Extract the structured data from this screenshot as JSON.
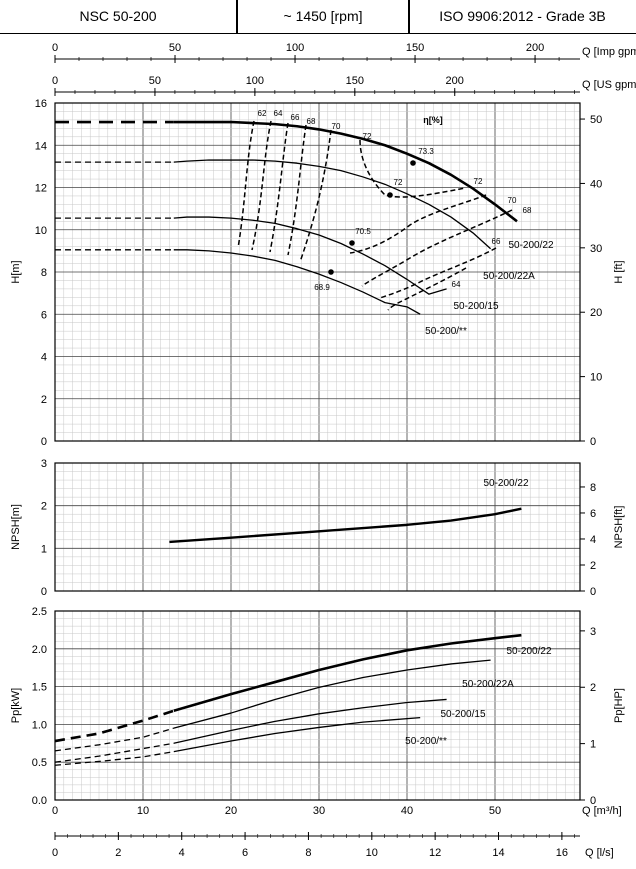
{
  "header": {
    "model": "NSC 50-200",
    "speed": "~ 1450 [rpm]",
    "standard": "ISO 9906:2012 - Grade 3B"
  },
  "chart_data": [
    {
      "type": "line",
      "id": "flow_axes",
      "axes": {
        "imp_gpm": {
          "label": "Q [Imp gpm]",
          "ticks": [
            0,
            50,
            100,
            150,
            200
          ]
        },
        "us_gpm": {
          "label": "Q [US gpm]",
          "ticks": [
            0,
            50,
            100,
            150,
            200
          ]
        },
        "m3h": {
          "label": "Q [m³/h]",
          "ticks": [
            0,
            10,
            20,
            30,
            40,
            50
          ]
        },
        "ls": {
          "label": "Q [l/s]",
          "ticks": [
            0,
            2,
            4,
            6,
            8,
            10,
            12,
            14,
            16
          ]
        }
      }
    },
    {
      "type": "line",
      "id": "head",
      "ylabel": "H[m]",
      "y2label": "H [ft]",
      "ylim": [
        0,
        16
      ],
      "yticks": [
        0,
        2,
        4,
        6,
        8,
        10,
        12,
        14,
        16
      ],
      "y2ticks": [
        0,
        10,
        20,
        30,
        40,
        50
      ],
      "eta_label": "η[%]",
      "series": [
        {
          "name": "50-200/22",
          "bold": true,
          "x": [
            13.5,
            15,
            17.5,
            20,
            22.5,
            25,
            27.5,
            30,
            32.5,
            35,
            37.5,
            40,
            42.5,
            45,
            47.5,
            50,
            52.5
          ],
          "y": [
            15.1,
            15.1,
            15.1,
            15.1,
            15.05,
            15.0,
            14.9,
            14.75,
            14.55,
            14.3,
            14.0,
            13.6,
            13.15,
            12.6,
            11.95,
            11.2,
            10.4
          ]
        },
        {
          "name": "50-200/22A",
          "x": [
            13.5,
            15,
            17.5,
            20,
            22.5,
            25,
            27.5,
            30,
            32.5,
            35,
            37.5,
            40,
            42.5,
            45,
            47.5,
            49.5
          ],
          "y": [
            13.2,
            13.25,
            13.3,
            13.3,
            13.3,
            13.25,
            13.15,
            13.0,
            12.8,
            12.5,
            12.15,
            11.7,
            11.2,
            10.6,
            9.85,
            9.1
          ]
        },
        {
          "name": "50-200/15",
          "x": [
            13.5,
            15,
            17.5,
            20,
            22.5,
            25,
            27.5,
            30,
            32.5,
            35,
            37.5,
            40,
            42.5,
            44.5
          ],
          "y": [
            10.55,
            10.6,
            10.6,
            10.55,
            10.45,
            10.3,
            10.05,
            9.75,
            9.35,
            8.85,
            8.3,
            7.65,
            6.95,
            7.2
          ]
        },
        {
          "name": "50-200/**",
          "x": [
            13.5,
            15,
            17.5,
            20,
            22.5,
            25,
            27.5,
            30,
            32.5,
            35,
            37.5,
            40,
            41.5
          ],
          "y": [
            9.05,
            9.05,
            9.0,
            8.9,
            8.75,
            8.55,
            8.25,
            7.9,
            7.5,
            7.05,
            6.55,
            6.35,
            6.0
          ]
        }
      ],
      "efficiency_labels": [
        "62",
        "64",
        "66",
        "68",
        "70",
        "72",
        "73.3",
        "72",
        "72",
        "70",
        "68",
        "70.5",
        "66",
        "64",
        "68.9"
      ]
    },
    {
      "type": "line",
      "id": "npsh",
      "ylabel": "NPSH[m]",
      "y2label": "NPSH[ft]",
      "ylim": [
        0,
        3
      ],
      "yticks": [
        0,
        1,
        2,
        3
      ],
      "y2ticks": [
        0,
        2,
        4,
        6,
        8
      ],
      "series": [
        {
          "name": "50-200/22",
          "x": [
            13,
            20,
            30,
            40,
            45,
            50,
            53
          ],
          "y": [
            1.15,
            1.25,
            1.4,
            1.55,
            1.65,
            1.8,
            1.93
          ]
        }
      ]
    },
    {
      "type": "line",
      "id": "power",
      "ylabel": "Pp[kW]",
      "y2label": "Pp[HP]",
      "ylim": [
        0,
        2.5
      ],
      "yticks": [
        0.0,
        0.5,
        1.0,
        1.5,
        2.0,
        2.5
      ],
      "y2ticks": [
        0,
        1,
        2,
        3
      ],
      "series": [
        {
          "name": "50-200/22",
          "bold": true,
          "x": [
            0,
            5,
            10,
            13.5,
            20,
            25,
            30,
            35,
            40,
            45,
            50,
            53
          ],
          "y": [
            0.78,
            0.88,
            1.05,
            1.18,
            1.4,
            1.56,
            1.72,
            1.86,
            1.98,
            2.07,
            2.14,
            2.18
          ]
        },
        {
          "name": "50-200/22A",
          "x": [
            0,
            5,
            10,
            13.5,
            20,
            25,
            30,
            35,
            40,
            45,
            49.5
          ],
          "y": [
            0.65,
            0.73,
            0.83,
            0.95,
            1.15,
            1.33,
            1.49,
            1.62,
            1.72,
            1.8,
            1.85
          ]
        },
        {
          "name": "50-200/15",
          "x": [
            0,
            5,
            10,
            13.5,
            20,
            25,
            30,
            35,
            40,
            44.5
          ],
          "y": [
            0.5,
            0.58,
            0.68,
            0.75,
            0.92,
            1.04,
            1.14,
            1.22,
            1.29,
            1.33
          ]
        },
        {
          "name": "50-200/**",
          "x": [
            0,
            5,
            10,
            13.5,
            20,
            25,
            30,
            35,
            41.5
          ],
          "y": [
            0.46,
            0.51,
            0.57,
            0.64,
            0.78,
            0.88,
            0.96,
            1.03,
            1.09
          ]
        }
      ]
    }
  ]
}
